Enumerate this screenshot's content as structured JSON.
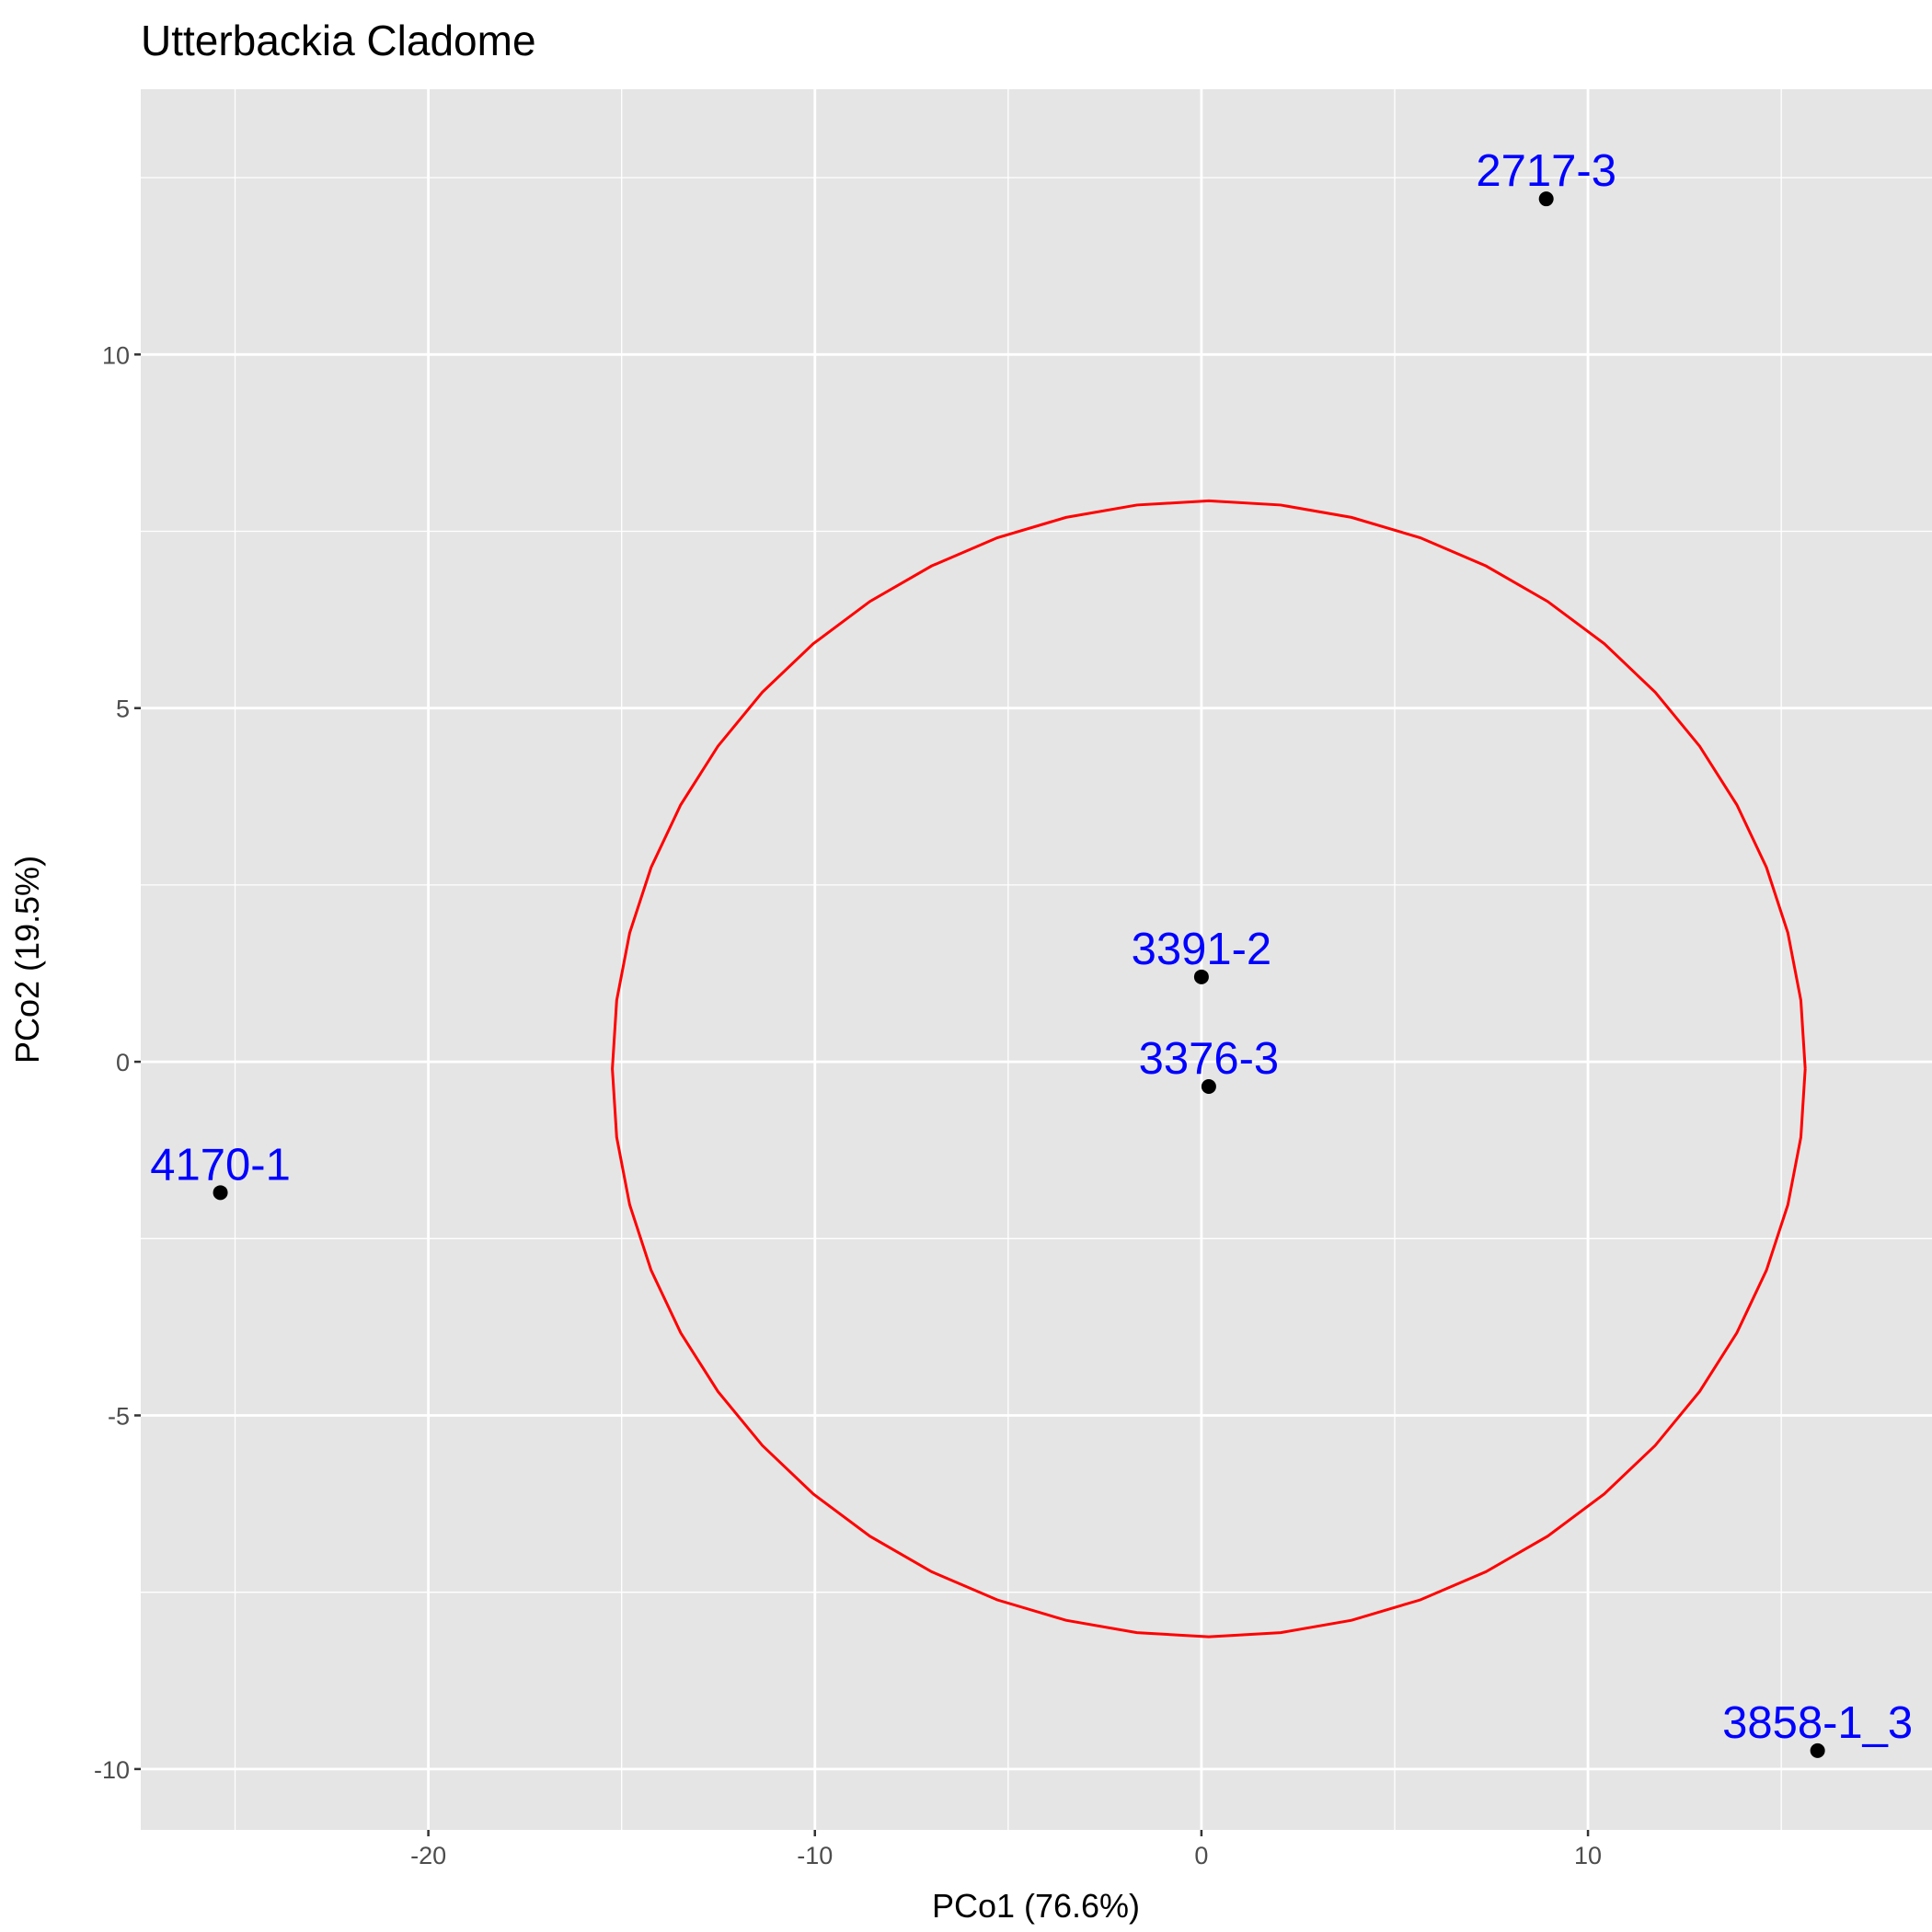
{
  "chart_data": {
    "type": "scatter",
    "title": "Utterbackia Cladome",
    "x_label": "PCo1 (76.6%)",
    "y_label": "PCo2 (19.5%)",
    "xlim": [
      -27.44,
      18.9
    ],
    "ylim": [
      -10.86,
      13.75
    ],
    "xticks": [
      -20,
      -10,
      0,
      10
    ],
    "yticks": [
      -10,
      -5,
      0,
      5,
      10
    ],
    "x_minor": [
      -25,
      -15,
      -5,
      5,
      15
    ],
    "y_minor": [
      -7.5,
      -2.5,
      2.5,
      7.5,
      12.5
    ],
    "grid": true,
    "color": "#000000",
    "label_color": "#0000ff",
    "labels": [
      "2717-3",
      "3391-2",
      "3376-3",
      "4170-1",
      "3858-1_3"
    ],
    "x": [
      8.92,
      0,
      0.19,
      -25.38,
      15.94
    ],
    "values": [
      12.2,
      1.2,
      -0.35,
      -1.85,
      -9.74
    ],
    "ellipse": {
      "cx": 0.19,
      "cy": -0.1,
      "rx": 15.43,
      "ry": 8.03,
      "color": "#ff0000"
    }
  }
}
